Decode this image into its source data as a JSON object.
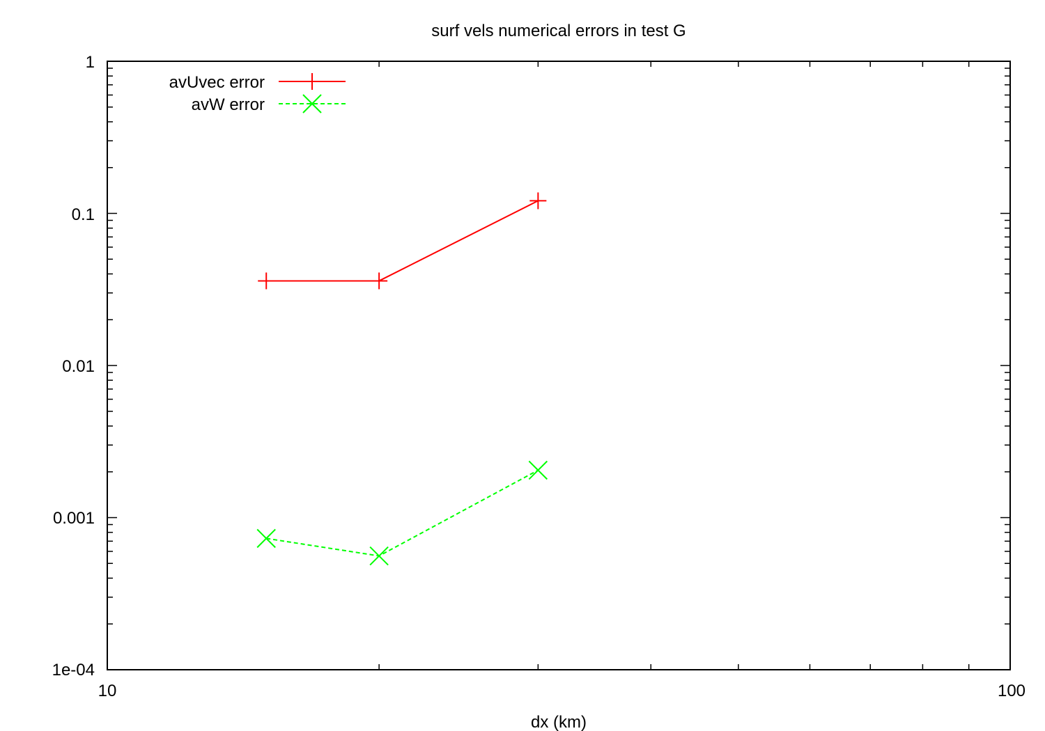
{
  "chart_data": {
    "type": "line",
    "title": "surf vels  numerical errors in test G",
    "xlabel": "dx  (km)",
    "ylabel": "",
    "xscale": "log",
    "yscale": "log",
    "xlim": [
      10,
      100
    ],
    "ylim": [
      0.0001,
      1
    ],
    "x_tick_labels": [
      "10",
      "100"
    ],
    "y_tick_labels": [
      "1e-04",
      "0.001",
      "0.01",
      "0.1",
      "1"
    ],
    "grid": false,
    "legend_position": "top-left",
    "series": [
      {
        "name": "avUvec error",
        "color": "#ff0000",
        "marker": "plus",
        "dash": "solid",
        "x": [
          15,
          20,
          30
        ],
        "y": [
          0.036,
          0.036,
          0.121
        ]
      },
      {
        "name": "avW error",
        "color": "#00ff00",
        "marker": "cross",
        "dash": "dashed",
        "x": [
          15,
          20,
          30
        ],
        "y": [
          0.00073,
          0.00056,
          0.00205
        ]
      }
    ]
  }
}
